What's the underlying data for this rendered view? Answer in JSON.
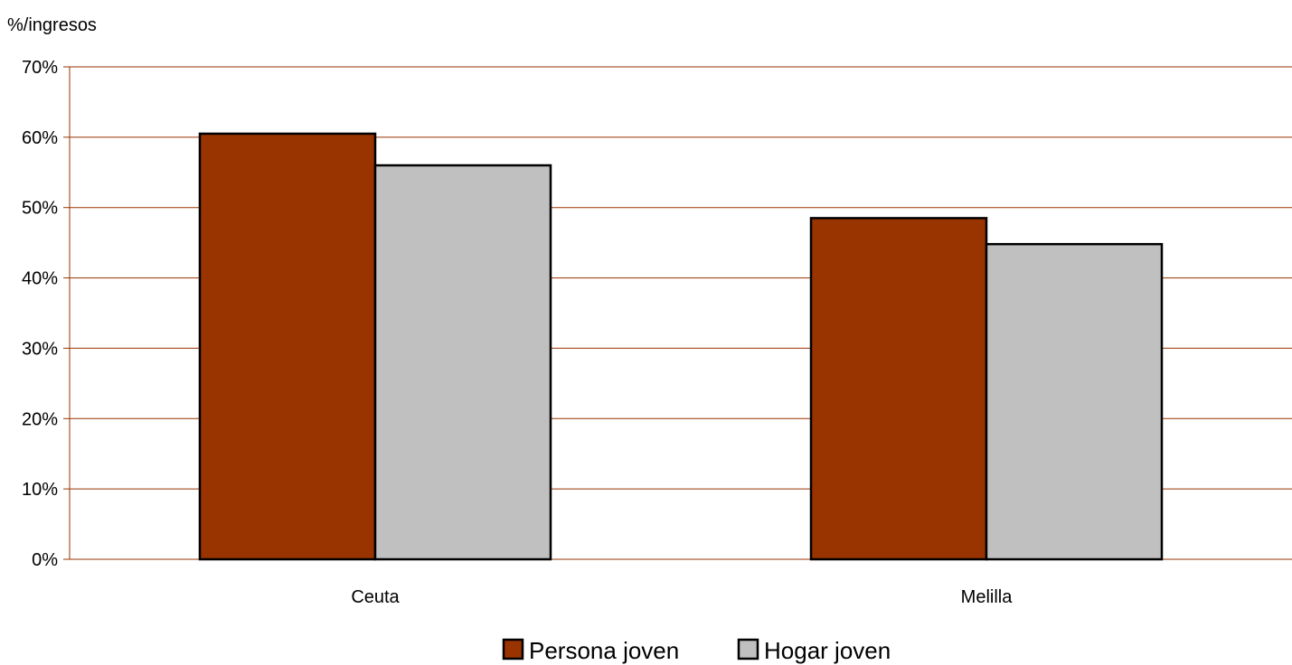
{
  "chart_data": {
    "type": "bar",
    "ylabel": "%/ingresos",
    "xlabel": "",
    "ylim": [
      0,
      0.7
    ],
    "yticks": [
      "0%",
      "10%",
      "20%",
      "30%",
      "40%",
      "50%",
      "60%",
      "70%"
    ],
    "categories": [
      "Ceuta",
      "Melilla"
    ],
    "series": [
      {
        "name": "Persona joven",
        "values": [
          0.605,
          0.485
        ],
        "color": "#993300"
      },
      {
        "name": "Hogar joven",
        "values": [
          0.56,
          0.448
        ],
        "color": "#c0c0c0"
      }
    ],
    "grid": true,
    "grid_color": "#993300",
    "legend_position": "bottom"
  }
}
